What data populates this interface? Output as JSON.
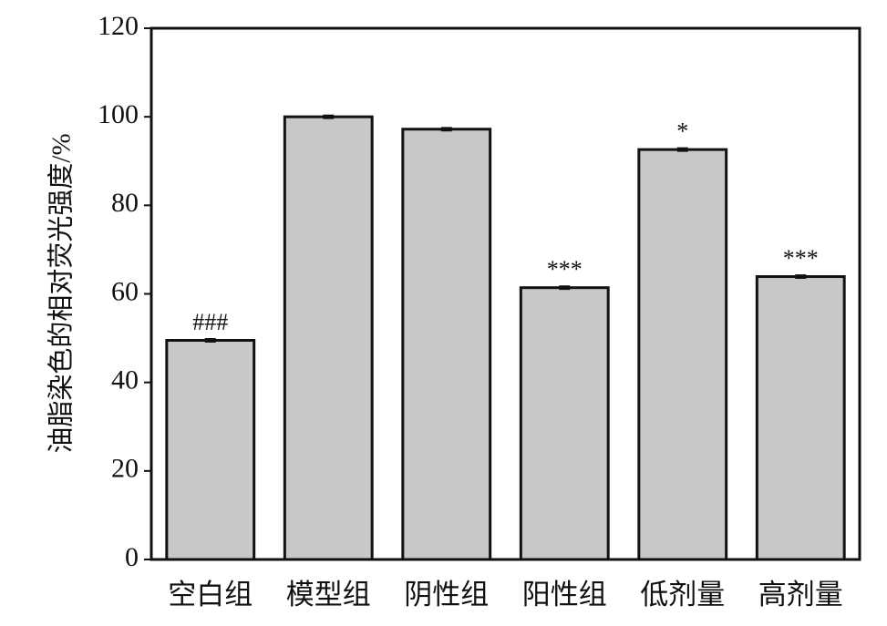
{
  "chart_data": {
    "type": "bar",
    "y_label": "油脂染色的相对荧光强度/%",
    "categories": [
      "空白组",
      "模型组",
      "阴性组",
      "阳性组",
      "低剂量",
      "高剂量"
    ],
    "values": [
      49.5,
      100,
      97.2,
      61.4,
      92.6,
      63.9
    ],
    "errors": [
      0.3,
      0.3,
      0.3,
      0.3,
      0.3,
      0.3
    ],
    "annotations": [
      "###",
      null,
      null,
      "***",
      "*",
      "***"
    ],
    "color": "#c8c8c8",
    "ylim": [
      0,
      120
    ],
    "yticks": [
      0,
      20,
      40,
      60,
      80,
      100,
      120
    ]
  }
}
